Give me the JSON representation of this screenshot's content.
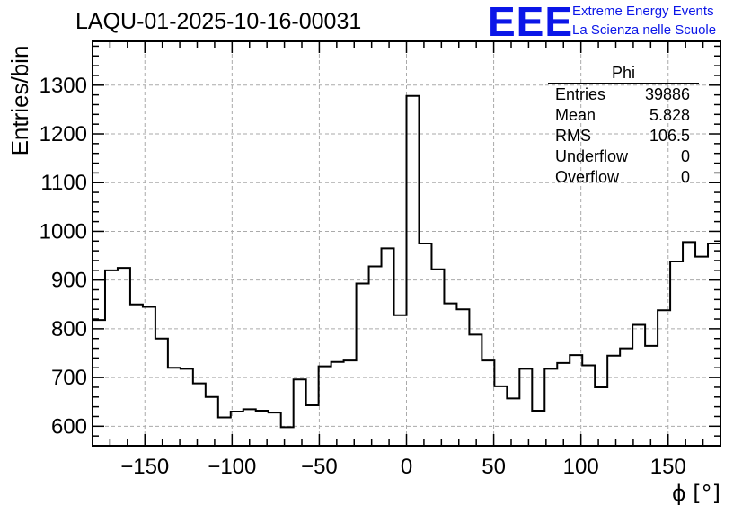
{
  "title": "LAQU-01-2025-10-16-00031",
  "brand": {
    "logo_text": "EEE",
    "line1": "Extreme Energy Events",
    "line2": "La Scienza nelle Scuole",
    "color": "#0b16e8"
  },
  "stats_box": {
    "name": "Phi",
    "rows": [
      {
        "label": "Entries",
        "value": "39886"
      },
      {
        "label": "Mean",
        "value": "5.828"
      },
      {
        "label": "RMS",
        "value": "106.5"
      },
      {
        "label": "Underflow",
        "value": "0"
      },
      {
        "label": "Overflow",
        "value": "0"
      }
    ]
  },
  "chart_data": {
    "type": "histogram",
    "title": "LAQU-01-2025-10-16-00031",
    "xlabel": "ϕ [°]",
    "ylabel": "Entries/bin",
    "xlim": [
      -180,
      180
    ],
    "ylim": [
      560,
      1390
    ],
    "xticks": [
      -150,
      -100,
      -50,
      0,
      50,
      100,
      150
    ],
    "yticks": [
      600,
      700,
      800,
      900,
      1000,
      1100,
      1200,
      1300
    ],
    "grid": true,
    "bin_width": 7.2,
    "bin_edges_start": -180,
    "values": [
      818,
      920,
      925,
      850,
      845,
      780,
      720,
      718,
      688,
      660,
      618,
      630,
      635,
      632,
      628,
      598,
      696,
      643,
      723,
      732,
      735,
      893,
      928,
      965,
      828,
      1278,
      975,
      922,
      852,
      840,
      788,
      735,
      682,
      657,
      718,
      632,
      718,
      730,
      746,
      725,
      680,
      745,
      760,
      808,
      765,
      838,
      938,
      978,
      948,
      975
    ]
  }
}
